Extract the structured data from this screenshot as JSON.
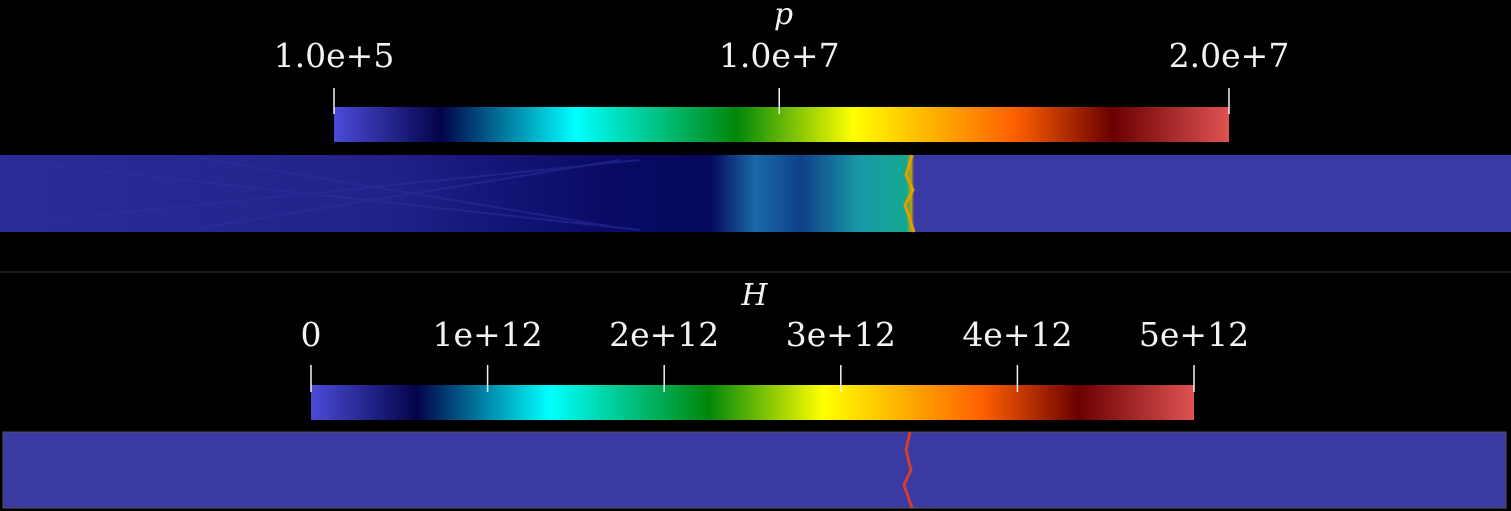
{
  "panels": [
    {
      "title": "p",
      "range": [
        100000,
        20000000
      ],
      "ticks": [
        {
          "value": 100000,
          "label": "1.0e+5"
        },
        {
          "value": 10000000,
          "label": "1.0e+7"
        },
        {
          "value": 20000000,
          "label": "2.0e+7"
        }
      ]
    },
    {
      "title": "H",
      "range": [
        0,
        5000000000000
      ],
      "ticks": [
        0,
        {
          "value": 1000000000000,
          "label": "1e+12"
        },
        {
          "value": 2000000000000,
          "label": "2e+12"
        },
        {
          "value": 3000000000000,
          "label": "3e+12"
        },
        {
          "value": 4000000000000,
          "label": "4e+12"
        },
        {
          "value": 5000000000000,
          "label": "5e+12"
        }
      ]
    }
  ]
}
